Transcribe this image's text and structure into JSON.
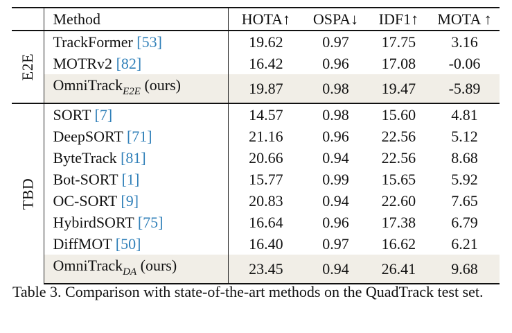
{
  "table": {
    "columns": [
      "Method",
      "HOTA↑",
      "OSPA↓",
      "IDF1↑",
      "MOTA ↑"
    ],
    "groups": [
      {
        "label": "E2E",
        "rows": [
          {
            "name": "TrackFormer",
            "sub": "",
            "suffix": "",
            "cite": "[53]",
            "hota": "19.62",
            "ospa": "0.97",
            "idf1": "17.75",
            "mota": "3.16",
            "bold": [
              "mota"
            ],
            "highlight": false
          },
          {
            "name": "MOTRv2",
            "sub": "",
            "suffix": "",
            "cite": "[82]",
            "hota": "16.42",
            "ospa": "0.96",
            "idf1": "17.08",
            "mota": "-0.06",
            "bold": [
              "ospa"
            ],
            "highlight": false
          },
          {
            "name": "OmniTrack",
            "sub": "E2E",
            "suffix": " (ours)",
            "cite": "",
            "hota": "19.87",
            "ospa": "0.98",
            "idf1": "19.47",
            "mota": "-5.89",
            "bold": [
              "hota",
              "idf1"
            ],
            "highlight": true
          }
        ]
      },
      {
        "label": "TBD",
        "rows": [
          {
            "name": "SORT",
            "sub": "",
            "suffix": "",
            "cite": "[7]",
            "hota": "14.57",
            "ospa": "0.98",
            "idf1": "15.60",
            "mota": "4.81",
            "bold": [],
            "highlight": false
          },
          {
            "name": "DeepSORT",
            "sub": "",
            "suffix": "",
            "cite": "[71]",
            "hota": "21.16",
            "ospa": "0.96",
            "idf1": "22.56",
            "mota": "5.12",
            "bold": [],
            "highlight": false
          },
          {
            "name": "ByteTrack",
            "sub": "",
            "suffix": "",
            "cite": "[81]",
            "hota": "20.66",
            "ospa": "0.94",
            "idf1": "22.56",
            "mota": "8.68",
            "bold": [
              "ospa"
            ],
            "highlight": false
          },
          {
            "name": "Bot-SORT",
            "sub": "",
            "suffix": "",
            "cite": "[1]",
            "hota": "15.77",
            "ospa": "0.99",
            "idf1": "15.65",
            "mota": "5.92",
            "bold": [],
            "highlight": false
          },
          {
            "name": "OC-SORT",
            "sub": "",
            "suffix": "",
            "cite": "[9]",
            "hota": "20.83",
            "ospa": "0.94",
            "idf1": "22.60",
            "mota": "7.65",
            "bold": [
              "ospa"
            ],
            "highlight": false
          },
          {
            "name": "HybirdSORT",
            "sub": "",
            "suffix": "",
            "cite": "[75]",
            "hota": "16.64",
            "ospa": "0.96",
            "idf1": "17.38",
            "mota": "6.79",
            "bold": [],
            "highlight": false
          },
          {
            "name": "DiffMOT",
            "sub": "",
            "suffix": "",
            "cite": "[50]",
            "hota": "16.40",
            "ospa": "0.97",
            "idf1": "16.62",
            "mota": "6.21",
            "bold": [],
            "highlight": false
          },
          {
            "name": "OmniTrack",
            "sub": "DA",
            "suffix": " (ours)",
            "cite": "",
            "hota": "23.45",
            "ospa": "0.94",
            "idf1": "26.41",
            "mota": "9.68",
            "bold": [
              "hota",
              "ospa",
              "idf1",
              "mota"
            ],
            "highlight": true
          }
        ]
      }
    ]
  },
  "caption": "Table 3.  Comparison with state-of-the-art methods on the QuadTrack test set."
}
